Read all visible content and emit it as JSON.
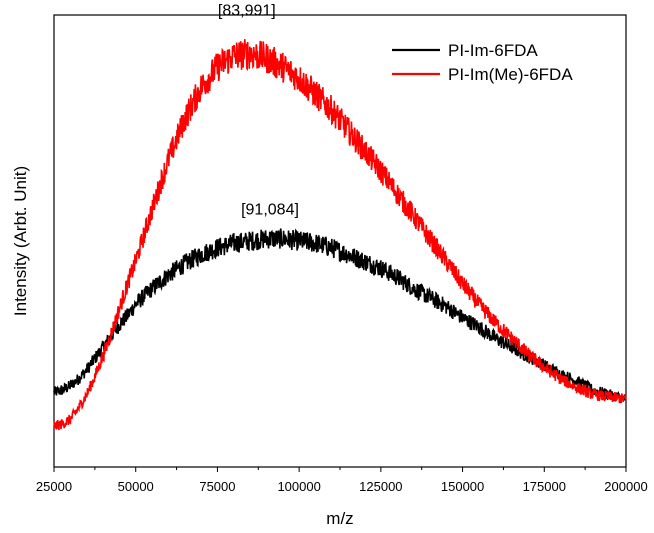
{
  "chart_data": {
    "type": "line",
    "title": "",
    "xlabel": "m/z",
    "ylabel": "Intensity (Arbt. Unit)",
    "xlim": [
      25000,
      200000
    ],
    "ylim": [
      0,
      1
    ],
    "x_ticks": [
      "25000",
      "50000",
      "75000",
      "100000",
      "125000",
      "150000",
      "175000",
      "200000"
    ],
    "y_ticks_shown": false,
    "grid": false,
    "legend_position": "top-right",
    "annotations": [
      {
        "text": "[83,991]",
        "x": 83991,
        "y": 0.99
      },
      {
        "text": "[91,084]",
        "x": 91084,
        "y": 0.55
      }
    ],
    "series": [
      {
        "name": "PI-Im-6FDA",
        "color": "#000000",
        "x": [
          25000,
          27500,
          30000,
          32500,
          35000,
          37500,
          40000,
          42500,
          45000,
          47500,
          50000,
          55000,
          60000,
          65000,
          70000,
          75000,
          80000,
          85000,
          90000,
          95000,
          100000,
          105000,
          110000,
          115000,
          120000,
          125000,
          130000,
          135000,
          140000,
          145000,
          150000,
          155000,
          160000,
          165000,
          170000,
          175000,
          180000,
          185000,
          190000,
          195000,
          200000
        ],
        "y": [
          0.165,
          0.17,
          0.18,
          0.195,
          0.215,
          0.24,
          0.265,
          0.29,
          0.315,
          0.335,
          0.36,
          0.395,
          0.425,
          0.45,
          0.47,
          0.485,
          0.495,
          0.5,
          0.505,
          0.505,
          0.5,
          0.495,
          0.485,
          0.47,
          0.455,
          0.44,
          0.42,
          0.395,
          0.375,
          0.355,
          0.33,
          0.31,
          0.285,
          0.265,
          0.245,
          0.225,
          0.205,
          0.19,
          0.17,
          0.16,
          0.15
        ]
      },
      {
        "name": "PI-Im(Me)-6FDA",
        "color": "#ff0000",
        "x": [
          25000,
          27500,
          30000,
          32500,
          35000,
          37500,
          40000,
          42500,
          45000,
          47500,
          50000,
          55000,
          60000,
          65000,
          70000,
          75000,
          80000,
          85000,
          90000,
          95000,
          100000,
          105000,
          110000,
          115000,
          120000,
          125000,
          130000,
          135000,
          140000,
          145000,
          150000,
          155000,
          160000,
          165000,
          170000,
          175000,
          180000,
          185000,
          190000,
          195000,
          200000
        ],
        "y": [
          0.09,
          0.095,
          0.105,
          0.13,
          0.16,
          0.2,
          0.245,
          0.295,
          0.35,
          0.405,
          0.455,
          0.57,
          0.68,
          0.77,
          0.84,
          0.885,
          0.91,
          0.915,
          0.905,
          0.885,
          0.86,
          0.825,
          0.79,
          0.745,
          0.7,
          0.655,
          0.605,
          0.555,
          0.505,
          0.455,
          0.405,
          0.36,
          0.32,
          0.285,
          0.25,
          0.22,
          0.195,
          0.175,
          0.16,
          0.155,
          0.15
        ]
      }
    ]
  }
}
